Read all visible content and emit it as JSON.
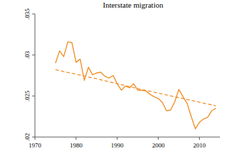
{
  "chart_data": {
    "type": "line",
    "title": "Interstate migration",
    "x": [
      1975,
      1976,
      1977,
      1978,
      1979,
      1980,
      1981,
      1982,
      1983,
      1984,
      1985,
      1986,
      1987,
      1988,
      1989,
      1990,
      1991,
      1992,
      1993,
      1994,
      1995,
      1996,
      1997,
      1998,
      1999,
      2000,
      2001,
      2002,
      2003,
      2004,
      2005,
      2006,
      2007,
      2008,
      2009,
      2010,
      2011,
      2012,
      2013,
      2014
    ],
    "series": [
      {
        "color": "#f0902a",
        "line_style": "solid",
        "values": [
          0.029,
          0.0305,
          0.0298,
          0.0316,
          0.0315,
          0.0291,
          0.0295,
          0.0269,
          0.0285,
          0.0276,
          0.0278,
          0.0279,
          0.0274,
          0.0272,
          0.0275,
          0.0265,
          0.0257,
          0.0262,
          0.026,
          0.0265,
          0.0257,
          0.0257,
          0.0256,
          0.0252,
          0.0249,
          0.0247,
          0.0242,
          0.0232,
          0.0233,
          0.0243,
          0.0258,
          0.0249,
          0.0241,
          0.0225,
          0.021,
          0.0218,
          0.0222,
          0.0224,
          0.0232,
          0.0235
        ]
      },
      {
        "color": "#f0902a",
        "line_style": "dashed",
        "x": [
          1975,
          1985,
          1995,
          2005,
          2014
        ],
        "values": [
          0.0282,
          0.0271,
          0.0259,
          0.0248,
          0.0238
        ]
      }
    ],
    "xlim": [
      1970,
      2015
    ],
    "xticks": [
      1970,
      1980,
      1990,
      2000,
      2010
    ],
    "ylim": [
      0.02,
      0.035
    ],
    "yticks": [
      {
        "value": 0.02,
        "label": ".02"
      },
      {
        "value": 0.025,
        "label": ".025"
      },
      {
        "value": 0.03,
        "label": ".03"
      },
      {
        "value": 0.035,
        "label": ".035"
      }
    ]
  }
}
